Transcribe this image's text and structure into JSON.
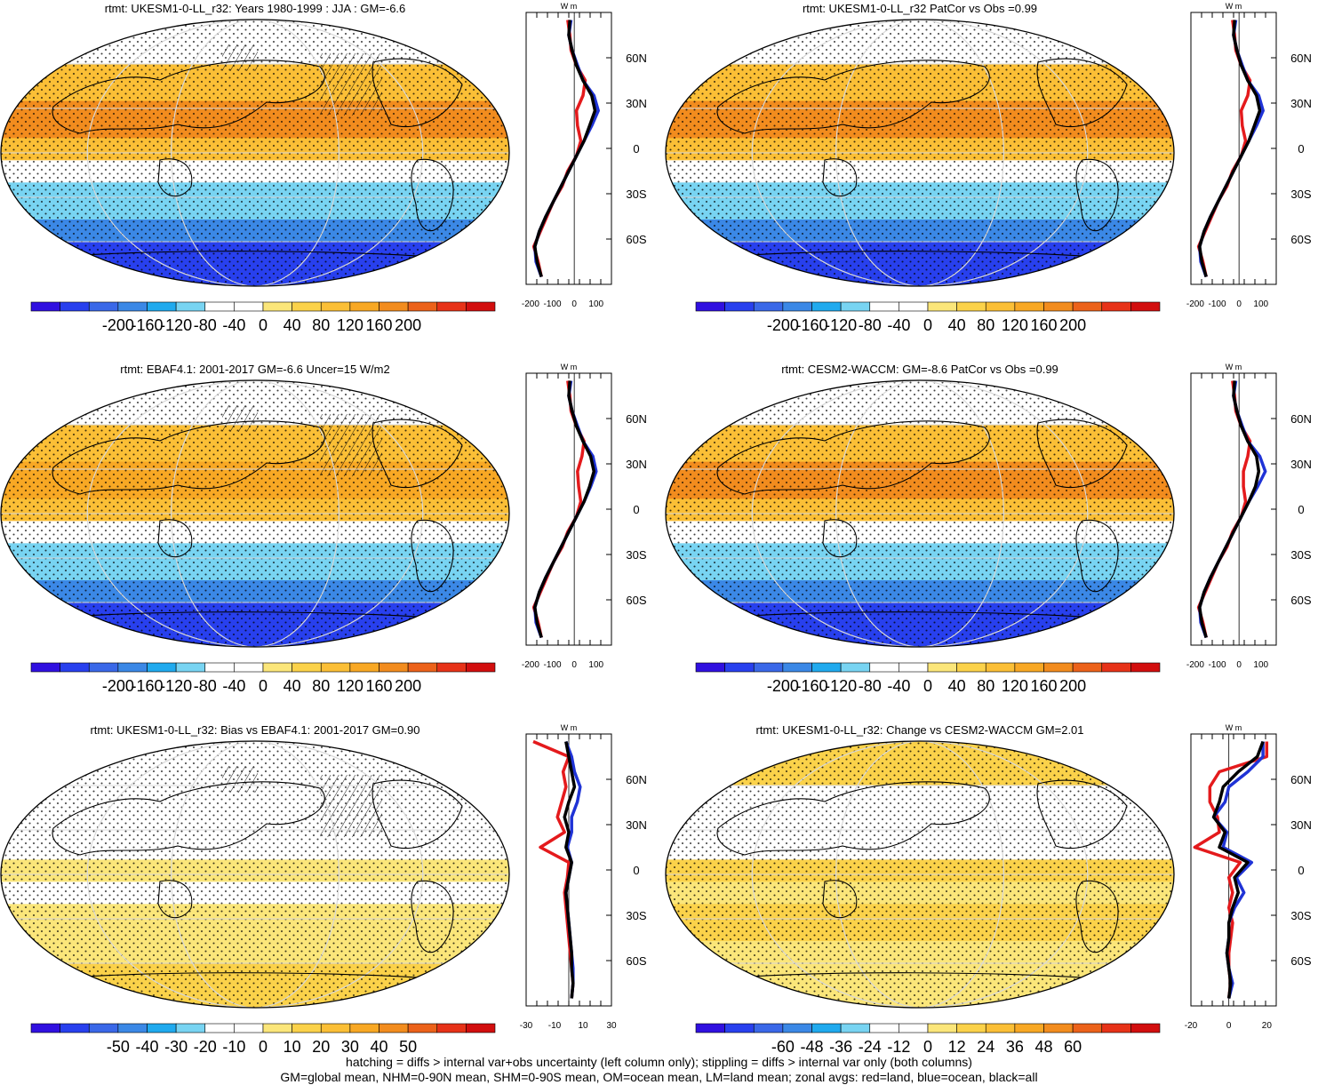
{
  "chart_data": {
    "type": "map",
    "units_label": "W m",
    "lat_ticks": [
      "60N",
      "30N",
      "0",
      "30S",
      "60S"
    ],
    "panels": [
      {
        "id": "model-mean",
        "title": "rtmt: UKESM1-0-LL_r32: Years 1980-1999 : JJA : GM=-6.6",
        "colorbar_labels": [
          "-200",
          "-160",
          "-120",
          "-80",
          "-40",
          "0",
          "40",
          "80",
          "120",
          "160",
          "200"
        ],
        "colorbar_range": [
          -220,
          220
        ],
        "profile_ticks": [
          "-200",
          "-100",
          "0",
          "100"
        ],
        "profile_xlim": [
          -220,
          170
        ],
        "hatching": true,
        "bands": [
          {
            "lat": [
              60,
              90
            ],
            "v": -30
          },
          {
            "lat": [
              35,
              60
            ],
            "v": 60
          },
          {
            "lat": [
              10,
              35
            ],
            "v": 110
          },
          {
            "lat": [
              -5,
              10
            ],
            "v": 60
          },
          {
            "lat": [
              -20,
              -5
            ],
            "v": -10
          },
          {
            "lat": [
              -45,
              -20
            ],
            "v": -70
          },
          {
            "lat": [
              -60,
              -45
            ],
            "v": -120
          },
          {
            "lat": [
              -90,
              -60
            ],
            "v": -180
          }
        ],
        "zonal": {
          "lat": [
            85,
            75,
            65,
            55,
            45,
            35,
            25,
            15,
            5,
            -5,
            -15,
            -25,
            -35,
            -45,
            -55,
            -65,
            -75,
            -85
          ],
          "all": [
            -20,
            -25,
            -10,
            10,
            40,
            80,
            95,
            70,
            45,
            10,
            -25,
            -60,
            -95,
            -130,
            -160,
            -180,
            -170,
            -150
          ],
          "land": [
            -30,
            -20,
            -15,
            10,
            50,
            40,
            10,
            15,
            30,
            10,
            -30,
            -55,
            -95,
            -125,
            -155,
            -185,
            -165,
            -150
          ],
          "ocean": [
            -15,
            -25,
            -10,
            15,
            40,
            90,
            110,
            80,
            45,
            10,
            -25,
            -60,
            -95,
            -130,
            -160,
            -180,
            -175,
            -150
          ]
        }
      },
      {
        "id": "model-patcor",
        "title": "rtmt: UKESM1-0-LL_r32 PatCor vs Obs =0.99",
        "colorbar_labels": [
          "-200",
          "-160",
          "-120",
          "-80",
          "-40",
          "0",
          "40",
          "80",
          "120",
          "160",
          "200"
        ],
        "colorbar_range": [
          -220,
          220
        ],
        "profile_ticks": [
          "-200",
          "-100",
          "0",
          "100"
        ],
        "profile_xlim": [
          -220,
          170
        ],
        "hatching": false,
        "bands": [
          {
            "lat": [
              60,
              90
            ],
            "v": -30
          },
          {
            "lat": [
              35,
              60
            ],
            "v": 60
          },
          {
            "lat": [
              10,
              35
            ],
            "v": 110
          },
          {
            "lat": [
              -5,
              10
            ],
            "v": 60
          },
          {
            "lat": [
              -20,
              -5
            ],
            "v": -10
          },
          {
            "lat": [
              -45,
              -20
            ],
            "v": -70
          },
          {
            "lat": [
              -60,
              -45
            ],
            "v": -120
          },
          {
            "lat": [
              -90,
              -60
            ],
            "v": -180
          }
        ],
        "zonal": {
          "lat": [
            85,
            75,
            65,
            55,
            45,
            35,
            25,
            15,
            5,
            -5,
            -15,
            -25,
            -35,
            -45,
            -55,
            -65,
            -75,
            -85
          ],
          "all": [
            -20,
            -25,
            -10,
            10,
            40,
            80,
            95,
            70,
            45,
            10,
            -25,
            -60,
            -95,
            -130,
            -160,
            -180,
            -170,
            -150
          ],
          "land": [
            -30,
            -20,
            -15,
            10,
            50,
            40,
            10,
            15,
            30,
            10,
            -30,
            -55,
            -95,
            -125,
            -155,
            -185,
            -165,
            -150
          ],
          "ocean": [
            -15,
            -25,
            -10,
            15,
            40,
            90,
            110,
            80,
            45,
            10,
            -25,
            -60,
            -95,
            -130,
            -160,
            -180,
            -175,
            -150
          ]
        }
      },
      {
        "id": "obs",
        "title": "rtmt: EBAF4.1: 2001-2017 GM=-6.6 Uncer=15 W/m2",
        "colorbar_labels": [
          "-200",
          "-160",
          "-120",
          "-80",
          "-40",
          "0",
          "40",
          "80",
          "120",
          "160",
          "200"
        ],
        "colorbar_range": [
          -220,
          220
        ],
        "profile_ticks": [
          "-200",
          "-100",
          "0",
          "100"
        ],
        "profile_xlim": [
          -220,
          170
        ],
        "hatching": true,
        "bands": [
          {
            "lat": [
              60,
              90
            ],
            "v": -30
          },
          {
            "lat": [
              35,
              60
            ],
            "v": 60
          },
          {
            "lat": [
              10,
              35
            ],
            "v": 100
          },
          {
            "lat": [
              -5,
              10
            ],
            "v": 60
          },
          {
            "lat": [
              -20,
              -5
            ],
            "v": -10
          },
          {
            "lat": [
              -45,
              -20
            ],
            "v": -70
          },
          {
            "lat": [
              -60,
              -45
            ],
            "v": -120
          },
          {
            "lat": [
              -90,
              -60
            ],
            "v": -180
          }
        ],
        "zonal": {
          "lat": [
            85,
            75,
            65,
            55,
            45,
            35,
            25,
            15,
            5,
            -5,
            -15,
            -25,
            -35,
            -45,
            -55,
            -65,
            -75,
            -85
          ],
          "all": [
            -20,
            -25,
            -10,
            10,
            40,
            75,
            90,
            70,
            45,
            10,
            -25,
            -60,
            -95,
            -130,
            -160,
            -180,
            -170,
            -150
          ],
          "land": [
            -30,
            -20,
            -15,
            10,
            45,
            35,
            15,
            20,
            30,
            10,
            -30,
            -55,
            -95,
            -125,
            -155,
            -185,
            -165,
            -150
          ],
          "ocean": [
            -15,
            -25,
            -10,
            15,
            40,
            85,
            100,
            75,
            45,
            10,
            -25,
            -60,
            -95,
            -130,
            -160,
            -180,
            -175,
            -150
          ]
        }
      },
      {
        "id": "ref-model",
        "title": "rtmt: CESM2-WACCM: GM=-8.6 PatCor vs Obs =0.99",
        "colorbar_labels": [
          "-200",
          "-160",
          "-120",
          "-80",
          "-40",
          "0",
          "40",
          "80",
          "120",
          "160",
          "200"
        ],
        "colorbar_range": [
          -220,
          220
        ],
        "profile_ticks": [
          "-200",
          "-100",
          "0",
          "100"
        ],
        "profile_xlim": [
          -220,
          170
        ],
        "hatching": false,
        "bands": [
          {
            "lat": [
              60,
              90
            ],
            "v": -30
          },
          {
            "lat": [
              35,
              60
            ],
            "v": 60
          },
          {
            "lat": [
              10,
              35
            ],
            "v": 120
          },
          {
            "lat": [
              -5,
              10
            ],
            "v": 60
          },
          {
            "lat": [
              -20,
              -5
            ],
            "v": -10
          },
          {
            "lat": [
              -45,
              -20
            ],
            "v": -70
          },
          {
            "lat": [
              -60,
              -45
            ],
            "v": -120
          },
          {
            "lat": [
              -90,
              -60
            ],
            "v": -180
          }
        ],
        "zonal": {
          "lat": [
            85,
            75,
            65,
            55,
            45,
            35,
            25,
            15,
            5,
            -5,
            -15,
            -25,
            -35,
            -45,
            -55,
            -65,
            -75,
            -85
          ],
          "all": [
            -20,
            -25,
            -10,
            10,
            40,
            80,
            90,
            75,
            45,
            10,
            -25,
            -60,
            -95,
            -130,
            -160,
            -180,
            -170,
            -150
          ],
          "land": [
            -30,
            -20,
            -15,
            10,
            50,
            40,
            20,
            20,
            30,
            10,
            -30,
            -55,
            -95,
            -125,
            -155,
            -185,
            -165,
            -150
          ],
          "ocean": [
            -15,
            -25,
            -10,
            15,
            40,
            95,
            120,
            85,
            45,
            10,
            -25,
            -60,
            -95,
            -130,
            -160,
            -180,
            -175,
            -150
          ]
        }
      },
      {
        "id": "bias",
        "title": "rtmt: UKESM1-0-LL_r32: Bias vs EBAF4.1: 2001-2017 GM=0.90",
        "colorbar_labels": [
          "-50",
          "-40",
          "-30",
          "-20",
          "-10",
          "0",
          "10",
          "20",
          "30",
          "40",
          "50"
        ],
        "colorbar_range": [
          -55,
          55
        ],
        "profile_ticks": [
          "-30",
          "-10",
          "10",
          "30"
        ],
        "profile_xlim": [
          -30,
          30
        ],
        "hatching": true,
        "bands": [
          {
            "lat": [
              60,
              90
            ],
            "v": -10
          },
          {
            "lat": [
              35,
              60
            ],
            "v": -8
          },
          {
            "lat": [
              10,
              35
            ],
            "v": -5
          },
          {
            "lat": [
              -5,
              10
            ],
            "v": 5
          },
          {
            "lat": [
              -20,
              -5
            ],
            "v": -3
          },
          {
            "lat": [
              -45,
              -20
            ],
            "v": 0
          },
          {
            "lat": [
              -60,
              -45
            ],
            "v": 3
          },
          {
            "lat": [
              -90,
              -60
            ],
            "v": 8
          }
        ],
        "zonal": {
          "lat": [
            85,
            75,
            65,
            55,
            45,
            35,
            25,
            15,
            5,
            -5,
            -15,
            -25,
            -35,
            -45,
            -55,
            -65,
            -75,
            -85
          ],
          "all": [
            -2,
            0,
            2,
            4,
            0,
            -3,
            0,
            -2,
            2,
            0,
            -2,
            -1,
            0,
            1,
            2,
            2,
            3,
            2
          ],
          "land": [
            -25,
            0,
            -4,
            -2,
            -5,
            -8,
            -3,
            -20,
            0,
            -1,
            -3,
            -2,
            -1,
            0,
            1,
            2,
            3,
            2
          ],
          "ocean": [
            -2,
            2,
            4,
            8,
            6,
            2,
            2,
            -1,
            2,
            0,
            -2,
            -1,
            0,
            1,
            2,
            3,
            3,
            2
          ]
        }
      },
      {
        "id": "change",
        "title": "rtmt: UKESM1-0-LL_r32: Change vs CESM2-WACCM GM=2.01",
        "colorbar_labels": [
          "-60",
          "-48",
          "-36",
          "-24",
          "-12",
          "0",
          "12",
          "24",
          "36",
          "48",
          "60"
        ],
        "colorbar_range": [
          -66,
          66
        ],
        "profile_ticks": [
          "-20",
          "0",
          "20"
        ],
        "profile_xlim": [
          -20,
          25
        ],
        "hatching": false,
        "bands": [
          {
            "lat": [
              60,
              90
            ],
            "v": 15
          },
          {
            "lat": [
              35,
              60
            ],
            "v": -10
          },
          {
            "lat": [
              10,
              35
            ],
            "v": -10
          },
          {
            "lat": [
              -5,
              10
            ],
            "v": 15
          },
          {
            "lat": [
              -20,
              -5
            ],
            "v": 8
          },
          {
            "lat": [
              -45,
              -20
            ],
            "v": 10
          },
          {
            "lat": [
              -60,
              -45
            ],
            "v": 0
          },
          {
            "lat": [
              -90,
              -60
            ],
            "v": 0
          }
        ],
        "zonal": {
          "lat": [
            85,
            75,
            65,
            55,
            45,
            35,
            25,
            15,
            5,
            -5,
            -15,
            -25,
            -35,
            -45,
            -55,
            -65,
            -75,
            -85
          ],
          "all": [
            18,
            15,
            5,
            -3,
            -5,
            -8,
            -2,
            -5,
            10,
            3,
            5,
            2,
            0,
            0,
            -1,
            0,
            1,
            0
          ],
          "land": [
            20,
            20,
            -5,
            -10,
            -10,
            -6,
            -5,
            -18,
            6,
            0,
            2,
            0,
            2,
            1,
            0,
            0,
            1,
            0
          ],
          "ocean": [
            18,
            18,
            10,
            0,
            -2,
            -8,
            -1,
            -3,
            12,
            4,
            8,
            3,
            0,
            0,
            -1,
            0,
            2,
            0
          ]
        }
      }
    ],
    "footer": [
      "hatching = diffs > internal var+obs uncertainty (left column only); stippling = diffs > internal var only (both columns)",
      "GM=global mean, NHM=0-90N mean, SHM=0-90S mean, OM=ocean mean, LM=land mean; zonal avgs: red=land, blue=ocean, black=all"
    ]
  },
  "colors": {
    "colorbar": [
      "#3010e0",
      "#2840ee",
      "#3a68e8",
      "#3b88e6",
      "#20aaee",
      "#78d4f2",
      "#ffffff",
      "#ffffff",
      "#fbe67a",
      "#fbd24a",
      "#fbbf36",
      "#f8a824",
      "#f28c1e",
      "#ec621a",
      "#e73218",
      "#d20e0e"
    ],
    "land_line": "#e41a1c",
    "ocean_line": "#1f33d6",
    "all_line": "#000000"
  }
}
